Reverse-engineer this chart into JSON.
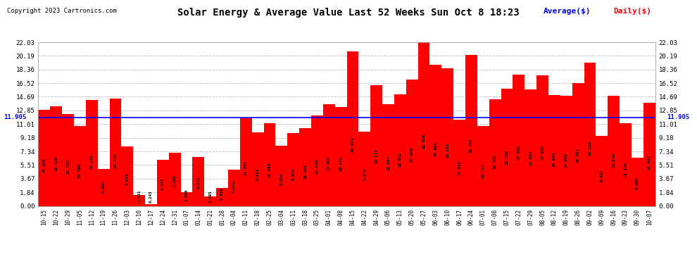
{
  "title": "Solar Energy & Average Value Last 52 Weeks Sun Oct 8 18:23",
  "copyright": "Copyright 2023 Cartronics.com",
  "legend_avg": "Average($)",
  "legend_daily": "Daily($)",
  "average_value": 11.905,
  "bar_color": "#ff0000",
  "average_line_color": "#0000ff",
  "average_label_color": "#0000ff",
  "background_color": "#ffffff",
  "grid_color": "#bbbbbb",
  "yticks": [
    0.0,
    1.84,
    3.67,
    5.51,
    7.34,
    9.18,
    11.01,
    12.85,
    14.69,
    16.52,
    18.36,
    20.19,
    22.03
  ],
  "categories": [
    "10-15",
    "10-22",
    "10-29",
    "11-05",
    "11-12",
    "11-19",
    "11-26",
    "12-03",
    "12-10",
    "12-17",
    "12-24",
    "12-31",
    "01-07",
    "01-14",
    "01-21",
    "01-28",
    "02-04",
    "02-11",
    "02-18",
    "02-25",
    "03-04",
    "03-11",
    "03-18",
    "03-25",
    "04-01",
    "04-08",
    "04-15",
    "04-22",
    "04-29",
    "05-06",
    "05-13",
    "05-20",
    "05-27",
    "06-03",
    "06-10",
    "06-17",
    "06-24",
    "07-01",
    "07-08",
    "07-15",
    "07-22",
    "07-29",
    "08-05",
    "08-12",
    "08-19",
    "08-26",
    "09-02",
    "09-09",
    "09-16",
    "09-23",
    "09-30",
    "10-07"
  ],
  "values": [
    12.98,
    13.429,
    12.33,
    10.799,
    14.241,
    4.991,
    14.479,
    7.975,
    1.431,
    0.243,
    6.177,
    7.168,
    1.806,
    6.571,
    1.293,
    2.416,
    4.911,
    11.755,
    9.911,
    11.094,
    8.064,
    9.853,
    10.455,
    12.216,
    13.662,
    13.272,
    20.814,
    9.972,
    16.277,
    13.664,
    15.011,
    17.029,
    22.028,
    18.984,
    18.555,
    11.646,
    20.352,
    10.717,
    14.323,
    15.76,
    17.643,
    15.684,
    17.605,
    14.934,
    14.809,
    16.581,
    19.318,
    9.423,
    14.84,
    11.136,
    6.46,
    13.864
  ]
}
